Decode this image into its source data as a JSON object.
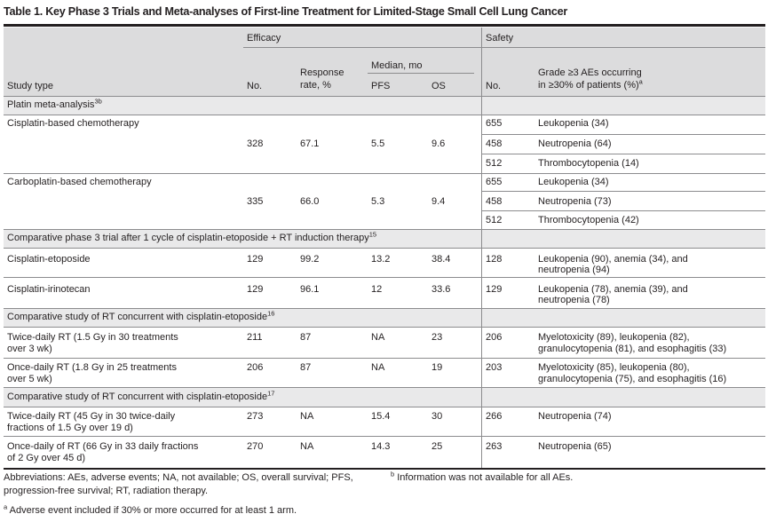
{
  "title": "Table 1. Key Phase 3 Trials and Meta-analyses of First-line Treatment for Limited-Stage Small Cell Lung Cancer",
  "header": {
    "efficacy": "Efficacy",
    "safety": "Safety",
    "study_type": "Study type",
    "no": "No.",
    "response_rate_l1": "Response",
    "response_rate_l2": "rate, %",
    "median_mo": "Median, mo",
    "pfs": "PFS",
    "os": "OS",
    "safety_no": "No.",
    "aes_l1": "Grade ≥3 AEs occurring",
    "aes_l2": "in ≥30% of patients (%)",
    "aes_sup": "a"
  },
  "sections": [
    {
      "label": "Platin meta-analysis",
      "sup": "3b",
      "rows": [
        {
          "study": "Cisplatin-based chemotherapy",
          "no": "328",
          "rr": "67.1",
          "pfs": "5.5",
          "os": "9.6",
          "safety": [
            {
              "no": "655",
              "ae": "Leukopenia (34)"
            },
            {
              "no": "458",
              "ae": "Neutropenia (64)"
            },
            {
              "no": "512",
              "ae": "Thrombocytopenia (14)"
            }
          ]
        },
        {
          "study": "Carboplatin-based chemotherapy",
          "no": "335",
          "rr": "66.0",
          "pfs": "5.3",
          "os": "9.4",
          "safety": [
            {
              "no": "655",
              "ae": "Leukopenia (34)"
            },
            {
              "no": "458",
              "ae": "Neutropenia (73)"
            },
            {
              "no": "512",
              "ae": "Thrombocytopenia (42)"
            }
          ]
        }
      ]
    },
    {
      "label": "Comparative phase 3 trial after 1 cycle of cisplatin-etoposide + RT induction therapy",
      "sup": "15",
      "rows": [
        {
          "study": "Cisplatin-etoposide",
          "no": "129",
          "rr": "99.2",
          "pfs": "13.2",
          "os": "38.4",
          "sno": "128",
          "ae_l1": "Leukopenia (90), anemia (34), and",
          "ae_l2": "neutropenia (94)"
        },
        {
          "study": "Cisplatin-irinotecan",
          "no": "129",
          "rr": "96.1",
          "pfs": "12",
          "os": "33.6",
          "sno": "129",
          "ae_l1": "Leukopenia (78), anemia (39), and",
          "ae_l2": "neutropenia (78)"
        }
      ]
    },
    {
      "label": "Comparative study of RT concurrent with cisplatin-etoposide",
      "sup": "16",
      "rows": [
        {
          "study_l1": "Twice-daily RT (1.5 Gy in 30 treatments",
          "study_l2": "over 3 wk)",
          "no": "211",
          "rr": "87",
          "pfs": "NA",
          "os": "23",
          "sno": "206",
          "ae_l1": "Myelotoxicity (89), leukopenia (82),",
          "ae_l2": "granulocytopenia (81), and esophagitis (33)"
        },
        {
          "study_l1": "Once-daily RT (1.8 Gy in 25 treatments",
          "study_l2": "over 5 wk)",
          "no": "206",
          "rr": "87",
          "pfs": "NA",
          "os": "19",
          "sno": "203",
          "ae_l1": "Myelotoxicity (85), leukopenia (80),",
          "ae_l2": "granulocytopenia (75), and esophagitis (16)"
        }
      ]
    },
    {
      "label": "Comparative study of RT concurrent with cisplatin-etoposide",
      "sup": "17",
      "rows": [
        {
          "study_l1": "Twice-daily RT (45 Gy in 30 twice-daily",
          "study_l2": "fractions of 1.5 Gy over 19 d)",
          "no": "273",
          "rr": "NA",
          "pfs": "15.4",
          "os": "30",
          "sno": "266",
          "ae": "Neutropenia (74)"
        },
        {
          "study_l1": "Once-daily of RT (66 Gy in 33 daily fractions",
          "study_l2": "of 2 Gy over 45 d)",
          "no": "270",
          "rr": "NA",
          "pfs": "14.3",
          "os": "25",
          "sno": "263",
          "ae": "Neutropenia (65)"
        }
      ]
    }
  ],
  "footnotes": {
    "abbrev_l1": "Abbreviations: AEs, adverse events; NA, not available; OS, overall survival; PFS,",
    "abbrev_l2": "progression-free survival; RT, radiation therapy.",
    "a_mark": "a",
    "a_text": "Adverse event included if 30% or more occurred for at least 1 arm.",
    "b_mark": "b",
    "b_text": "Information was not available for all AEs."
  }
}
